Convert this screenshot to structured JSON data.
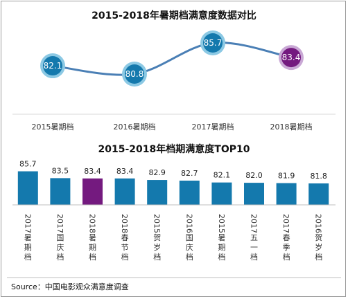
{
  "colors": {
    "bar": "#1479ad",
    "highlight": "#741a7f",
    "line": "#4a7fb5",
    "ring": "#8cc9e4",
    "ring_highlight": "#c9a8d5"
  },
  "chart_data": [
    {
      "type": "line",
      "title": "2015-2018年暑期档满意度数据对比",
      "categories": [
        "2015暑期档",
        "2016暑期档",
        "2017暑期档",
        "2018暑期档"
      ],
      "values": [
        82.1,
        80.8,
        85.7,
        83.4
      ],
      "highlight_index": 3
    },
    {
      "type": "bar",
      "title": "2015-2018年档期满意度TOP10",
      "categories": [
        "2017暑期档",
        "2017国庆档",
        "2018暑期档",
        "2018春节档",
        "2015贺岁档",
        "2016国庆档",
        "2015暑期档",
        "2017五一档",
        "2017春季档",
        "2016贺岁档"
      ],
      "values": [
        85.7,
        83.5,
        83.4,
        83.4,
        82.9,
        82.7,
        82.1,
        82.0,
        81.9,
        81.8
      ],
      "value_labels": [
        "85.7",
        "83.5",
        "83.4",
        "83.4",
        "82.9",
        "82.7",
        "82.1",
        "82.0",
        "81.9",
        "81.8"
      ],
      "highlight_index": 2
    }
  ],
  "source": "Source：中国电影观众满意度调查"
}
